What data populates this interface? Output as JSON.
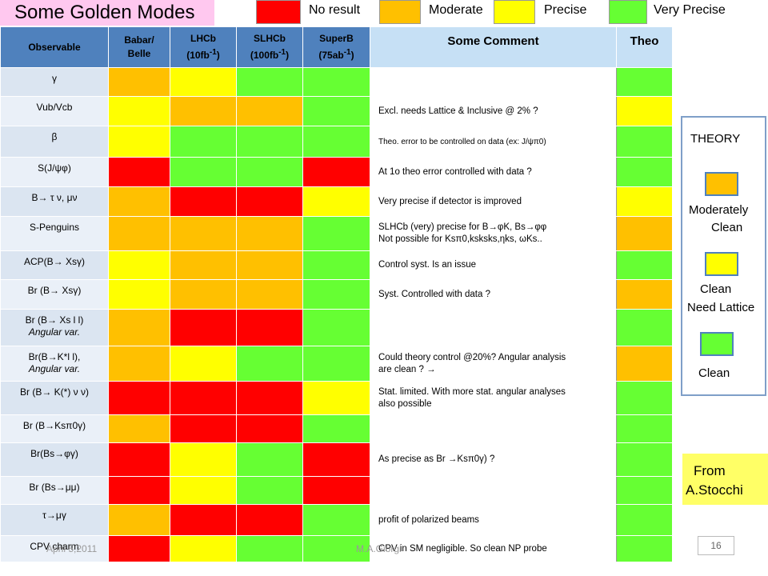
{
  "slide": {
    "title": "Some Golden Modes",
    "legend": [
      {
        "label": "No result",
        "color": "#ff0000"
      },
      {
        "label": "Moderate",
        "color": "#ffc000"
      },
      {
        "label": "Precise",
        "color": "#ffff00"
      },
      {
        "label": "Very Precise",
        "color": "#66ff33"
      }
    ],
    "colors": {
      "r": "#ff0000",
      "o": "#ffc000",
      "y": "#ffff00",
      "g": "#66ff33"
    },
    "table": {
      "headers": {
        "observable": "Observable",
        "babar_line1": "Babar/",
        "babar_line2": "Belle",
        "lhcb_line1": "LHCb",
        "lhcb_line2": "(10fb",
        "lhcb_sup": "-1",
        "lhcb_close": ")",
        "slhcb_line1": "SLHCb",
        "slhcb_line2": "(100fb",
        "slhcb_sup": "-1",
        "slhcb_close": ")",
        "superb_line1": "SuperB",
        "superb_line2": "(75ab",
        "superb_sup": "-1",
        "superb_close": ")",
        "comment": "Some Comment",
        "theo": "Theo"
      },
      "rows": [
        {
          "obs": "γ",
          "cells": [
            "o",
            "y",
            "g",
            "g"
          ],
          "comment": "",
          "theo": "g"
        },
        {
          "obs": "Vub/Vcb",
          "cells": [
            "y",
            "o",
            "o",
            "g"
          ],
          "comment": "Excl. needs Lattice & Inclusive @ 2% ?",
          "theo": "y"
        },
        {
          "obs": "β",
          "cells": [
            "y",
            "g",
            "g",
            "g"
          ],
          "comment": "Theo. error to be controlled on data (ex: J/ψπ0)",
          "theo": "g"
        },
        {
          "obs": "S(J/ψφ)",
          "cells": [
            "r",
            "g",
            "g",
            "r"
          ],
          "comment": "At 1o theo error controlled with data ?",
          "theo": "g"
        },
        {
          "obs": "B→ τ ν, μν",
          "cells": [
            "o",
            "r",
            "r",
            "y"
          ],
          "comment": "Very precise if detector is improved",
          "theo": "y"
        },
        {
          "obs": "S-Penguins",
          "cells": [
            "o",
            "o",
            "o",
            "g"
          ],
          "comment_line1": "SLHCb (very) precise for B→φK, Bs→φφ",
          "comment_line2": "Not possible for Ksπ0,ksksks,ηks, ωKs..",
          "theo": "o"
        },
        {
          "obs": "ACP(B→ Xsγ)",
          "cells": [
            "y",
            "o",
            "o",
            "g"
          ],
          "comment": "Control syst. Is an issue",
          "theo": "g"
        },
        {
          "obs": "Br (B→ Xsγ)",
          "cells": [
            "y",
            "o",
            "o",
            "g"
          ],
          "comment": "Syst. Controlled with data ?",
          "theo": "o"
        },
        {
          "obs_line1": "Br (B→ Xs l l)",
          "obs_line2": "Angular var.",
          "cells": [
            "o",
            "r",
            "r",
            "g"
          ],
          "comment": "",
          "theo": "g"
        },
        {
          "obs_line1": "Br(B→K*l l),",
          "obs_line2": "Angular var.",
          "cells": [
            "o",
            "y",
            "g",
            "g"
          ],
          "comment_line1": "Could theory control @20%? Angular analysis",
          "comment_line2": "are clean  ?                       →",
          "theo": "o"
        },
        {
          "obs": "Br (B→ K(*) ν ν)",
          "cells": [
            "r",
            "r",
            "r",
            "y"
          ],
          "comment_line1": "Stat. limited. With  more stat. angular analyses",
          "comment_line2": "also possible",
          "theo": "g"
        },
        {
          "obs": "Br (B→Ksπ0γ)",
          "cells": [
            "o",
            "r",
            "r",
            "g"
          ],
          "comment": "",
          "theo": "g"
        },
        {
          "obs": "Br(Bs→φγ)",
          "cells": [
            "r",
            "y",
            "g",
            "r"
          ],
          "comment": "As precise as Br →Ksπ0γ) ?",
          "theo": "g"
        },
        {
          "obs": "Br (Bs→μμ)",
          "cells": [
            "r",
            "y",
            "g",
            "r"
          ],
          "comment": "",
          "theo": "g"
        },
        {
          "obs": "τ→μγ",
          "cells": [
            "o",
            "r",
            "r",
            "g"
          ],
          "comment": "profit of polarized  beams",
          "theo": "g"
        },
        {
          "obs": "CPV charm",
          "cells": [
            "r",
            "y",
            "g",
            "g"
          ],
          "comment": "CPV in SM negligible. So clean NP probe",
          "theo": "g"
        }
      ]
    },
    "theory_box": {
      "heading": "THEORY",
      "moderately_line1": "Moderately",
      "moderately_line2": "Clean",
      "lattice_line1": "Clean",
      "lattice_line2": "Need Lattice",
      "clean": "Clean"
    },
    "credit_line1": "From",
    "credit_line2": "A.Stocchi",
    "footer_date": "April 5,2011",
    "footer_author": "M.A.Giorgi",
    "page_number": "16"
  }
}
